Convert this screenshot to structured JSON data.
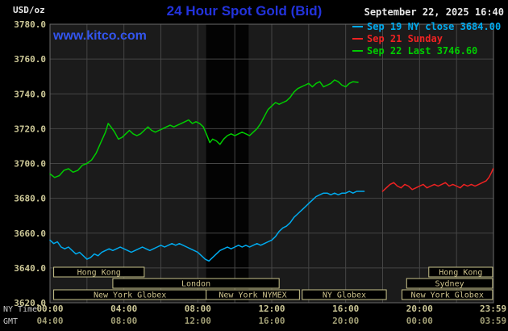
{
  "header": {
    "unit_label": "USD/oz",
    "title": "24 Hour Spot Gold (Bid)",
    "datetime": "September 22, 2025 16:40",
    "watermark": "www.kitco.com"
  },
  "legend": [
    {
      "label": "Sep 19 NY close 3684.00",
      "color": "#00aaee"
    },
    {
      "label": "Sep 21 Sunday",
      "color": "#ee2222"
    },
    {
      "label": "Sep 22 Last 3746.60",
      "color": "#00cc00"
    }
  ],
  "axes": {
    "row_labels": {
      "ny": "NY Time",
      "gmt": "GMT"
    },
    "y_min": 3620,
    "y_max": 3780,
    "y_step": 20,
    "y_ticks": [
      "3780.0",
      "3760.0",
      "3740.0",
      "3720.0",
      "3700.0",
      "3680.0",
      "3660.0",
      "3640.0",
      "3620.0"
    ],
    "x_ticks": [
      {
        "t": 0,
        "ny": "00:00",
        "gmt": "04:00"
      },
      {
        "t": 4,
        "ny": "04:00",
        "gmt": "08:00"
      },
      {
        "t": 8,
        "ny": "08:00",
        "gmt": "12:00"
      },
      {
        "t": 12,
        "ny": "12:00",
        "gmt": "16:00"
      },
      {
        "t": 16,
        "ny": "16:00",
        "gmt": "20:00"
      },
      {
        "t": 20,
        "ny": "20:00",
        "gmt": "00:00"
      },
      {
        "t": 23.983,
        "ny": "23:59",
        "gmt": "03:59"
      }
    ]
  },
  "sessions": [
    {
      "row": 0,
      "start": 0.2,
      "end": 5.1,
      "label": "Hong Kong"
    },
    {
      "row": 0,
      "start": 20.5,
      "end": 23.95,
      "label": "Hong Kong"
    },
    {
      "row": 1,
      "start": 3.4,
      "end": 12.4,
      "label": "London"
    },
    {
      "row": 1,
      "start": 19.3,
      "end": 23.95,
      "label": "Sydney"
    },
    {
      "row": 2,
      "start": 0.2,
      "end": 8.45,
      "label": "New York Globex"
    },
    {
      "row": 2,
      "start": 8.45,
      "end": 13.5,
      "label": "New York NYMEX"
    },
    {
      "row": 2,
      "start": 13.65,
      "end": 18.2,
      "label": "NY Globex"
    },
    {
      "row": 2,
      "start": 19.05,
      "end": 23.95,
      "label": "New York Globex"
    }
  ],
  "chart_data": {
    "type": "line",
    "title": "24 Hour Spot Gold (Bid)",
    "x_unit": "hours, NY time (0-24)",
    "y_unit": "USD/oz",
    "x_range": [
      0,
      24
    ],
    "y_range": [
      3620,
      3780
    ],
    "grid": true,
    "shaded_band_hours": [
      8.45,
      10.75
    ],
    "series": [
      {
        "name": "Sep 19 NY close 3684.00",
        "color": "#00aaee",
        "points": [
          [
            0,
            3656
          ],
          [
            0.2,
            3654
          ],
          [
            0.4,
            3655
          ],
          [
            0.6,
            3652
          ],
          [
            0.8,
            3651
          ],
          [
            1,
            3652
          ],
          [
            1.2,
            3650
          ],
          [
            1.4,
            3648
          ],
          [
            1.6,
            3649
          ],
          [
            1.8,
            3647
          ],
          [
            2,
            3645
          ],
          [
            2.2,
            3646
          ],
          [
            2.4,
            3648
          ],
          [
            2.6,
            3647
          ],
          [
            2.8,
            3649
          ],
          [
            3,
            3650
          ],
          [
            3.2,
            3651
          ],
          [
            3.4,
            3650
          ],
          [
            3.6,
            3651
          ],
          [
            3.8,
            3652
          ],
          [
            4,
            3651
          ],
          [
            4.2,
            3650
          ],
          [
            4.4,
            3649
          ],
          [
            4.6,
            3650
          ],
          [
            4.8,
            3651
          ],
          [
            5,
            3652
          ],
          [
            5.2,
            3651
          ],
          [
            5.4,
            3650
          ],
          [
            5.6,
            3651
          ],
          [
            5.8,
            3652
          ],
          [
            6,
            3653
          ],
          [
            6.2,
            3652
          ],
          [
            6.4,
            3653
          ],
          [
            6.6,
            3654
          ],
          [
            6.8,
            3653
          ],
          [
            7,
            3654
          ],
          [
            7.2,
            3653
          ],
          [
            7.4,
            3652
          ],
          [
            7.6,
            3651
          ],
          [
            7.8,
            3650
          ],
          [
            8,
            3649
          ],
          [
            8.2,
            3647
          ],
          [
            8.4,
            3645
          ],
          [
            8.6,
            3644
          ],
          [
            8.8,
            3646
          ],
          [
            9,
            3648
          ],
          [
            9.2,
            3650
          ],
          [
            9.4,
            3651
          ],
          [
            9.6,
            3652
          ],
          [
            9.8,
            3651
          ],
          [
            10,
            3652
          ],
          [
            10.2,
            3653
          ],
          [
            10.4,
            3652
          ],
          [
            10.6,
            3653
          ],
          [
            10.8,
            3652
          ],
          [
            11,
            3653
          ],
          [
            11.2,
            3654
          ],
          [
            11.4,
            3653
          ],
          [
            11.6,
            3654
          ],
          [
            11.8,
            3655
          ],
          [
            12,
            3656
          ],
          [
            12.2,
            3658
          ],
          [
            12.4,
            3661
          ],
          [
            12.6,
            3663
          ],
          [
            12.8,
            3664
          ],
          [
            13,
            3666
          ],
          [
            13.2,
            3669
          ],
          [
            13.4,
            3671
          ],
          [
            13.6,
            3673
          ],
          [
            13.8,
            3675
          ],
          [
            14,
            3677
          ],
          [
            14.2,
            3679
          ],
          [
            14.4,
            3681
          ],
          [
            14.6,
            3682
          ],
          [
            14.8,
            3683
          ],
          [
            15,
            3683
          ],
          [
            15.2,
            3682
          ],
          [
            15.4,
            3683
          ],
          [
            15.6,
            3682
          ],
          [
            15.8,
            3683
          ],
          [
            16,
            3683
          ],
          [
            16.2,
            3684
          ],
          [
            16.4,
            3683
          ],
          [
            16.6,
            3684
          ],
          [
            16.8,
            3684
          ],
          [
            17,
            3684
          ]
        ]
      },
      {
        "name": "Sep 21 Sunday",
        "color": "#ee2222",
        "points": [
          [
            18,
            3684
          ],
          [
            18.2,
            3686
          ],
          [
            18.4,
            3688
          ],
          [
            18.6,
            3689
          ],
          [
            18.8,
            3687
          ],
          [
            19,
            3686
          ],
          [
            19.2,
            3688
          ],
          [
            19.4,
            3687
          ],
          [
            19.6,
            3685
          ],
          [
            19.8,
            3686
          ],
          [
            20,
            3687
          ],
          [
            20.2,
            3688
          ],
          [
            20.4,
            3686
          ],
          [
            20.6,
            3687
          ],
          [
            20.8,
            3688
          ],
          [
            21,
            3687
          ],
          [
            21.2,
            3688
          ],
          [
            21.4,
            3689
          ],
          [
            21.6,
            3687
          ],
          [
            21.8,
            3688
          ],
          [
            22,
            3687
          ],
          [
            22.2,
            3686
          ],
          [
            22.4,
            3688
          ],
          [
            22.6,
            3687
          ],
          [
            22.8,
            3688
          ],
          [
            23,
            3687
          ],
          [
            23.2,
            3688
          ],
          [
            23.4,
            3689
          ],
          [
            23.6,
            3690
          ],
          [
            23.75,
            3692
          ],
          [
            23.9,
            3695
          ],
          [
            23.98,
            3697
          ]
        ]
      },
      {
        "name": "Sep 22 Last 3746.60",
        "color": "#00cc00",
        "points": [
          [
            0,
            3694
          ],
          [
            0.25,
            3692
          ],
          [
            0.5,
            3693
          ],
          [
            0.75,
            3696
          ],
          [
            1,
            3697
          ],
          [
            1.25,
            3695
          ],
          [
            1.5,
            3696
          ],
          [
            1.75,
            3699
          ],
          [
            2,
            3700
          ],
          [
            2.25,
            3702
          ],
          [
            2.5,
            3706
          ],
          [
            2.75,
            3712
          ],
          [
            3,
            3718
          ],
          [
            3.15,
            3723
          ],
          [
            3.3,
            3721
          ],
          [
            3.5,
            3718
          ],
          [
            3.7,
            3714
          ],
          [
            3.9,
            3715
          ],
          [
            4.1,
            3717
          ],
          [
            4.3,
            3719
          ],
          [
            4.5,
            3717
          ],
          [
            4.7,
            3716
          ],
          [
            4.9,
            3717
          ],
          [
            5.1,
            3719
          ],
          [
            5.3,
            3721
          ],
          [
            5.5,
            3719
          ],
          [
            5.7,
            3718
          ],
          [
            5.9,
            3719
          ],
          [
            6.1,
            3720
          ],
          [
            6.3,
            3721
          ],
          [
            6.5,
            3722
          ],
          [
            6.7,
            3721
          ],
          [
            6.9,
            3722
          ],
          [
            7.1,
            3723
          ],
          [
            7.3,
            3724
          ],
          [
            7.5,
            3725
          ],
          [
            7.7,
            3723
          ],
          [
            7.9,
            3724
          ],
          [
            8.1,
            3723
          ],
          [
            8.3,
            3721
          ],
          [
            8.5,
            3716
          ],
          [
            8.65,
            3712
          ],
          [
            8.8,
            3714
          ],
          [
            9,
            3713
          ],
          [
            9.2,
            3711
          ],
          [
            9.4,
            3714
          ],
          [
            9.6,
            3716
          ],
          [
            9.8,
            3717
          ],
          [
            10,
            3716
          ],
          [
            10.2,
            3717
          ],
          [
            10.4,
            3718
          ],
          [
            10.6,
            3717
          ],
          [
            10.8,
            3716
          ],
          [
            11,
            3718
          ],
          [
            11.2,
            3720
          ],
          [
            11.4,
            3723
          ],
          [
            11.6,
            3727
          ],
          [
            11.8,
            3731
          ],
          [
            12,
            3733
          ],
          [
            12.2,
            3735
          ],
          [
            12.4,
            3734
          ],
          [
            12.6,
            3735
          ],
          [
            12.8,
            3736
          ],
          [
            13,
            3738
          ],
          [
            13.2,
            3741
          ],
          [
            13.4,
            3743
          ],
          [
            13.6,
            3744
          ],
          [
            13.8,
            3745
          ],
          [
            14,
            3746
          ],
          [
            14.2,
            3744
          ],
          [
            14.4,
            3746
          ],
          [
            14.6,
            3747
          ],
          [
            14.8,
            3744
          ],
          [
            15,
            3745
          ],
          [
            15.2,
            3746
          ],
          [
            15.4,
            3748
          ],
          [
            15.6,
            3747
          ],
          [
            15.8,
            3745
          ],
          [
            16,
            3744
          ],
          [
            16.2,
            3746
          ],
          [
            16.4,
            3747
          ],
          [
            16.67,
            3746.6
          ]
        ]
      }
    ]
  },
  "colors": {
    "bg": "#000000",
    "plot_bg": "#1b1b1b",
    "band": "#030303",
    "grid": "#454545",
    "border": "#6b6b6b",
    "tick_text": "#cdc897",
    "gmt_text": "#a19e75",
    "axis_row_label": "#c8c8c8",
    "session_border": "#c9c38b",
    "session_text": "#cdc28c",
    "title_blue": "#2333dd",
    "watermark_blue": "#3355ee",
    "date_text": "#e8e8e8"
  }
}
